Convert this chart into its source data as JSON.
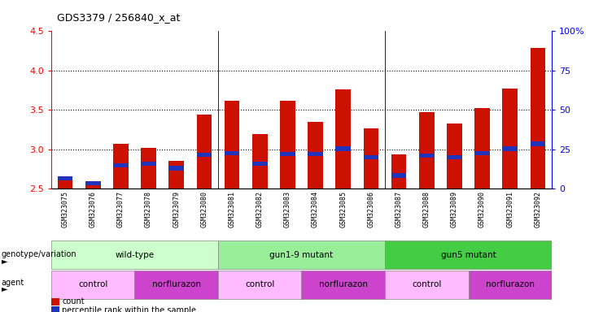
{
  "title": "GDS3379 / 256840_x_at",
  "samples": [
    "GSM323075",
    "GSM323076",
    "GSM323077",
    "GSM323078",
    "GSM323079",
    "GSM323080",
    "GSM323081",
    "GSM323082",
    "GSM323083",
    "GSM323084",
    "GSM323085",
    "GSM323086",
    "GSM323087",
    "GSM323088",
    "GSM323089",
    "GSM323090",
    "GSM323091",
    "GSM323092"
  ],
  "counts": [
    2.63,
    2.58,
    3.07,
    3.02,
    2.85,
    3.44,
    3.62,
    3.19,
    3.62,
    3.35,
    3.76,
    3.27,
    2.94,
    3.47,
    3.33,
    3.52,
    3.77,
    4.29
  ],
  "percentile_ranks": [
    2.63,
    2.57,
    2.8,
    2.82,
    2.76,
    2.93,
    2.95,
    2.82,
    2.94,
    2.94,
    3.01,
    2.9,
    2.67,
    2.92,
    2.9,
    2.95,
    3.01,
    3.07
  ],
  "ymin": 2.5,
  "ymax": 4.5,
  "yticks": [
    2.5,
    3.0,
    3.5,
    4.0,
    4.5
  ],
  "right_yticks": [
    0,
    25,
    50,
    75,
    100
  ],
  "right_yticklabels": [
    "0",
    "25",
    "50",
    "75",
    "100%"
  ],
  "bar_color": "#cc1100",
  "blue_color": "#2233bb",
  "bar_width": 0.55,
  "genotype_groups": [
    {
      "label": "wild-type",
      "start": 0,
      "end": 5,
      "color": "#ccffcc"
    },
    {
      "label": "gun1-9 mutant",
      "start": 6,
      "end": 11,
      "color": "#99ee99"
    },
    {
      "label": "gun5 mutant",
      "start": 12,
      "end": 17,
      "color": "#44cc44"
    }
  ],
  "agent_groups": [
    {
      "label": "control",
      "start": 0,
      "end": 2,
      "color": "#ffaaff"
    },
    {
      "label": "norflurazon",
      "start": 3,
      "end": 5,
      "color": "#cc44cc"
    },
    {
      "label": "control",
      "start": 6,
      "end": 8,
      "color": "#ffaaff"
    },
    {
      "label": "norflurazon",
      "start": 9,
      "end": 11,
      "color": "#cc44cc"
    },
    {
      "label": "control",
      "start": 12,
      "end": 14,
      "color": "#ffaaff"
    },
    {
      "label": "norflurazon",
      "start": 15,
      "end": 17,
      "color": "#cc44cc"
    }
  ],
  "legend_count_color": "#cc1100",
  "legend_pct_color": "#2233bb",
  "ticklabel_bg": "#dddddd",
  "plot_bg": "#ffffff",
  "grid_yticks": [
    3.0,
    3.5,
    4.0
  ]
}
